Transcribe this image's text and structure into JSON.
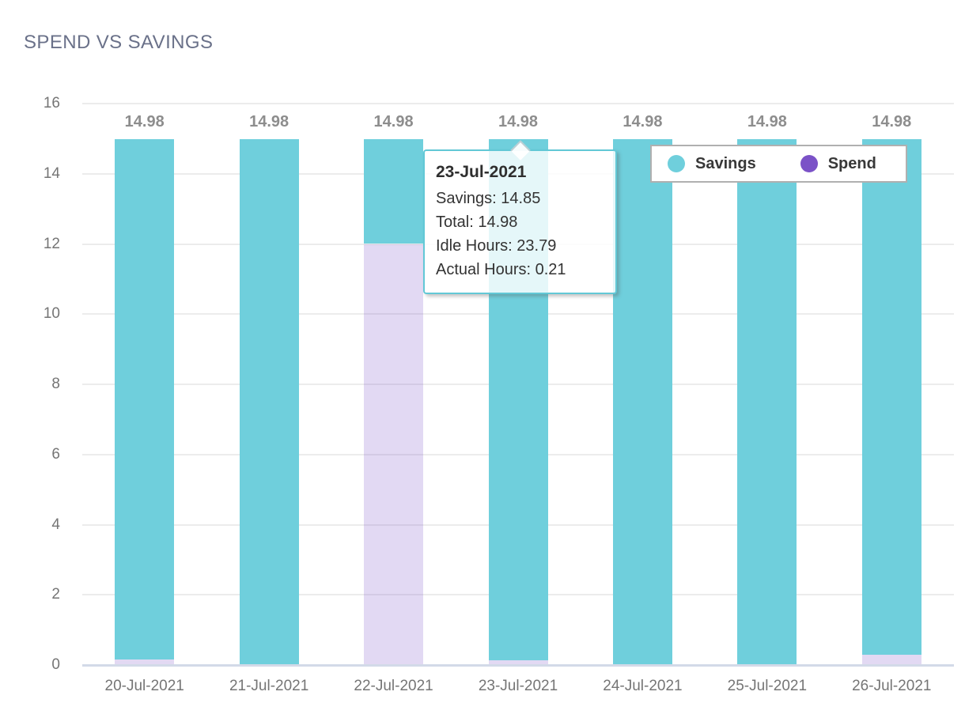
{
  "header": {
    "title": "SPEND VS SAVINGS"
  },
  "chart_data": {
    "type": "bar",
    "stacked": true,
    "title": "SPEND VS SAVINGS",
    "categories": [
      "20-Jul-2021",
      "21-Jul-2021",
      "22-Jul-2021",
      "23-Jul-2021",
      "24-Jul-2021",
      "25-Jul-2021",
      "26-Jul-2021"
    ],
    "series": [
      {
        "name": "Savings",
        "bar_color": "#6FCFDC",
        "legend_color": "#6FCFDC",
        "values": [
          14.83,
          14.98,
          2.98,
          14.85,
          14.98,
          14.98,
          14.68
        ]
      },
      {
        "name": "Spend",
        "bar_color": "rgba(123,82,199,0.22)",
        "legend_color": "#7B52C7",
        "values": [
          0.15,
          0.0,
          12.0,
          0.13,
          0.0,
          0.0,
          0.3
        ]
      }
    ],
    "total_labels": [
      "14.98",
      "14.98",
      "14.98",
      "14.98",
      "14.98",
      "14.98",
      "14.98"
    ],
    "xlabel": "",
    "ylabel": "",
    "ylim": [
      0,
      16
    ],
    "yticks": [
      0,
      2,
      4,
      6,
      8,
      10,
      12,
      14,
      16
    ],
    "grid": true,
    "legend_position": "top-right"
  },
  "tooltip": {
    "title": "23-Jul-2021",
    "items": [
      "Savings: 14.85",
      "Total: 14.98",
      "Idle Hours: 23.79",
      "Actual Hours: 0.21"
    ],
    "accent_color": "#62C8D6"
  }
}
